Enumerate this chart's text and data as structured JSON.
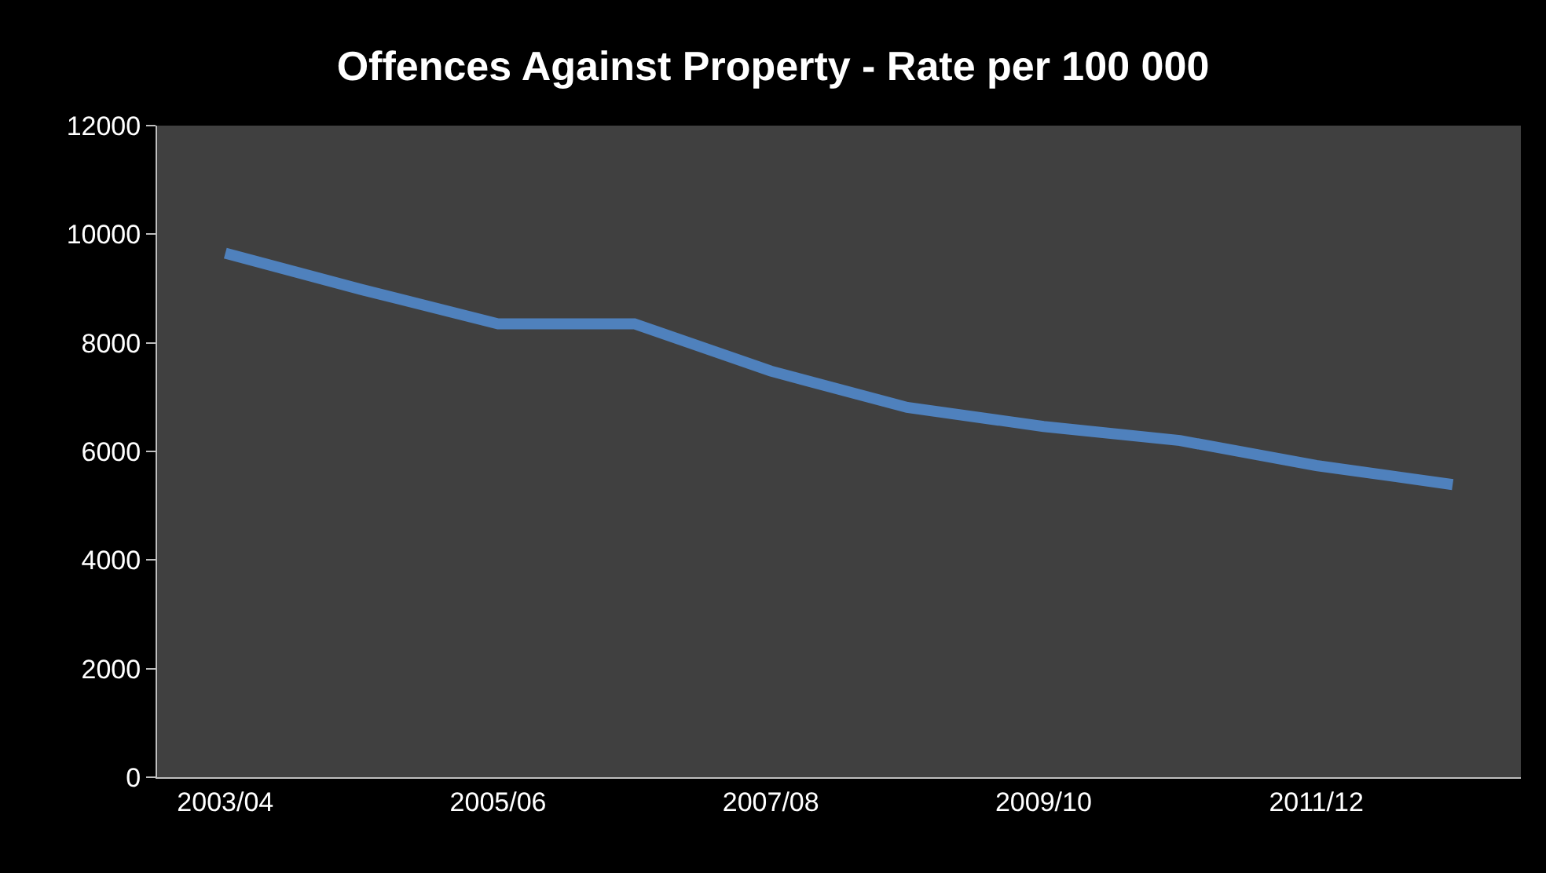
{
  "chart_data": {
    "type": "line",
    "title": "Offences Against Property - Rate per 100 000",
    "categories": [
      "2003/04",
      null,
      "2005/06",
      null,
      "2007/08",
      null,
      "2009/10",
      null,
      "2011/12",
      null
    ],
    "series": [
      {
        "color": "#4f81bd",
        "values": [
          9650,
          8980,
          8350,
          8350,
          7480,
          6810,
          6460,
          6200,
          5740,
          5390
        ]
      }
    ],
    "ylim": [
      0,
      12000
    ],
    "yticks": [
      0,
      2000,
      4000,
      6000,
      8000,
      10000,
      12000
    ],
    "grid": false,
    "marker": "none",
    "line_style": "solid"
  }
}
